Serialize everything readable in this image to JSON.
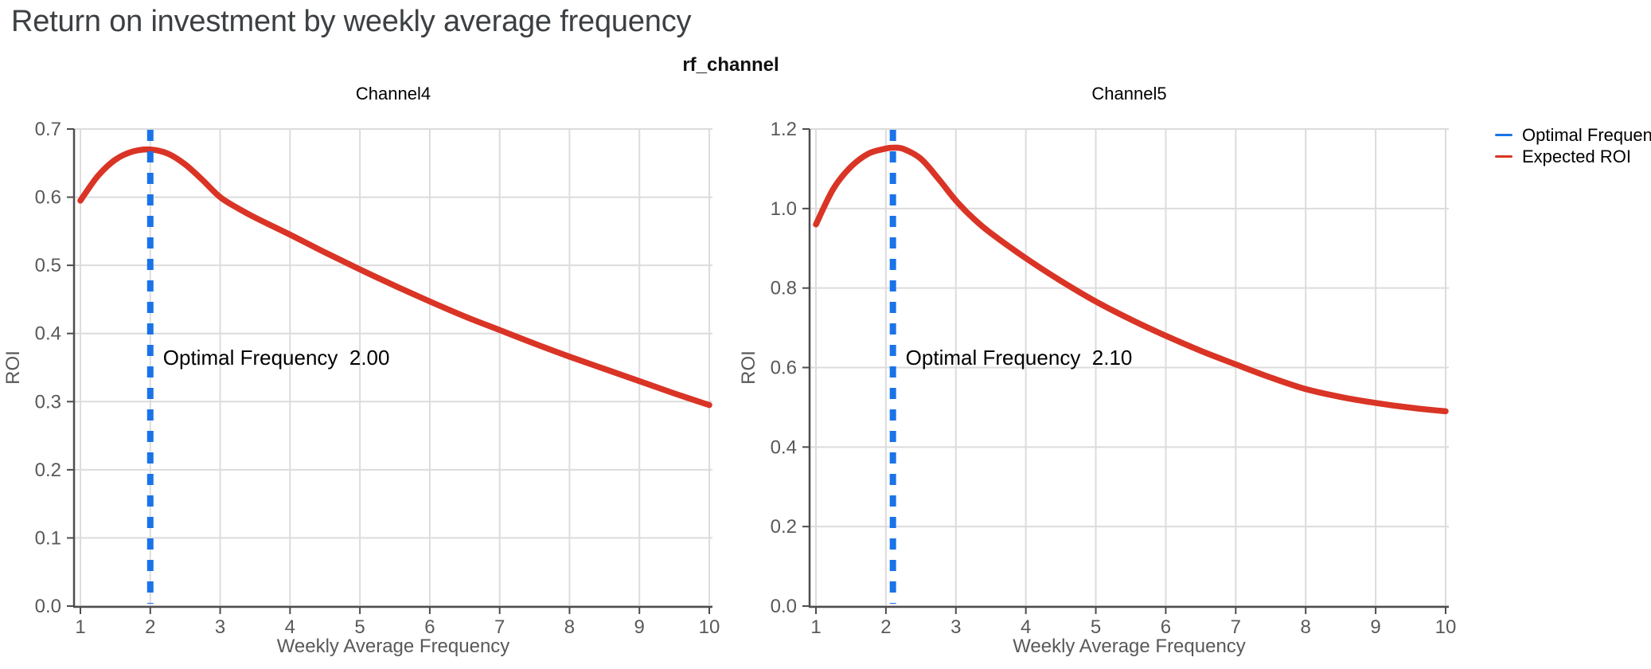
{
  "page": {
    "title": "Return on investment by weekly average frequency",
    "facet_title": "rf_channel"
  },
  "legend": {
    "position": "top-right",
    "items": [
      {
        "label": "Optimal Frequency",
        "color": "#1a73e8",
        "style": "line"
      },
      {
        "label": "Expected ROI",
        "color": "#d93425",
        "style": "line"
      }
    ]
  },
  "chart_data": [
    {
      "type": "line",
      "title": "Channel4",
      "xlabel": "Weekly Average Frequency",
      "ylabel": "ROI",
      "xlim": [
        1,
        10
      ],
      "ylim": [
        0,
        0.7
      ],
      "xticks": [
        1,
        2,
        3,
        4,
        5,
        6,
        7,
        8,
        9,
        10
      ],
      "ytick_step": 0.1,
      "grid": true,
      "optimal_frequency": 2.0,
      "annotation": {
        "label": "Optimal Frequency",
        "value": "2.00"
      },
      "series": [
        {
          "name": "Expected ROI",
          "x": [
            1,
            1.25,
            1.5,
            1.75,
            2,
            2.25,
            2.5,
            2.75,
            3,
            3.25,
            3.5,
            4,
            4.5,
            5,
            5.5,
            6,
            6.5,
            7,
            7.5,
            8,
            8.5,
            9,
            9.5,
            10
          ],
          "y": [
            0.595,
            0.631,
            0.655,
            0.667,
            0.67,
            0.664,
            0.648,
            0.625,
            0.6,
            0.584,
            0.57,
            0.545,
            0.519,
            0.494,
            0.47,
            0.447,
            0.425,
            0.405,
            0.385,
            0.366,
            0.348,
            0.33,
            0.312,
            0.295
          ]
        }
      ]
    },
    {
      "type": "line",
      "title": "Channel5",
      "xlabel": "Weekly Average Frequency",
      "ylabel": "ROI",
      "xlim": [
        1,
        10
      ],
      "ylim": [
        0,
        1.2
      ],
      "xticks": [
        1,
        2,
        3,
        4,
        5,
        6,
        7,
        8,
        9,
        10
      ],
      "ytick_step": 0.2,
      "grid": true,
      "optimal_frequency": 2.1,
      "annotation": {
        "label": "Optimal Frequency",
        "value": "2.10"
      },
      "series": [
        {
          "name": "Expected ROI",
          "x": [
            1,
            1.25,
            1.5,
            1.75,
            2,
            2.1,
            2.25,
            2.5,
            2.75,
            3,
            3.25,
            3.5,
            4,
            4.5,
            5,
            5.5,
            6,
            6.5,
            7,
            7.5,
            8,
            8.5,
            9,
            9.5,
            10
          ],
          "y": [
            0.96,
            1.05,
            1.105,
            1.138,
            1.151,
            1.153,
            1.15,
            1.125,
            1.075,
            1.02,
            0.975,
            0.938,
            0.875,
            0.818,
            0.766,
            0.721,
            0.68,
            0.642,
            0.608,
            0.575,
            0.546,
            0.526,
            0.511,
            0.499,
            0.49
          ]
        }
      ]
    }
  ]
}
